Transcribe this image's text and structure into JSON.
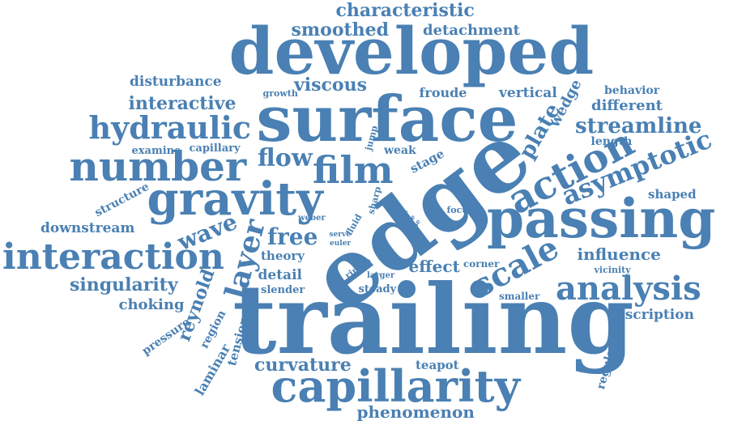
{
  "accent_color": "#4a80b3",
  "words": [
    {
      "text": "trailing",
      "weight": 1.0
    },
    {
      "text": "edge",
      "weight": 0.98
    },
    {
      "text": "surface",
      "weight": 0.8
    },
    {
      "text": "developed",
      "weight": 0.8
    },
    {
      "text": "passing",
      "weight": 0.6
    },
    {
      "text": "capillarity",
      "weight": 0.55
    },
    {
      "text": "gravity",
      "weight": 0.55
    },
    {
      "text": "number",
      "weight": 0.5
    },
    {
      "text": "interaction",
      "weight": 0.5
    },
    {
      "text": "action",
      "weight": 0.5
    },
    {
      "text": "analysis",
      "weight": 0.45
    },
    {
      "text": "film",
      "weight": 0.45
    },
    {
      "text": "hydraulic",
      "weight": 0.42
    },
    {
      "text": "layer",
      "weight": 0.4
    },
    {
      "text": "scale",
      "weight": 0.4
    },
    {
      "text": "asymptotic",
      "weight": 0.35
    },
    {
      "text": "flow",
      "weight": 0.35
    },
    {
      "text": "free",
      "weight": 0.32
    },
    {
      "text": "wave",
      "weight": 0.3
    },
    {
      "text": "streamline",
      "weight": 0.3
    },
    {
      "text": "plate",
      "weight": 0.3
    },
    {
      "text": "characteristic",
      "weight": 0.28
    },
    {
      "text": "smoothed",
      "weight": 0.28
    },
    {
      "text": "interactive",
      "weight": 0.28
    },
    {
      "text": "singularity",
      "weight": 0.28
    },
    {
      "text": "curvature",
      "weight": 0.28
    },
    {
      "text": "reynold",
      "weight": 0.28
    },
    {
      "text": "viscous",
      "weight": 0.26
    },
    {
      "text": "influence",
      "weight": 0.25
    },
    {
      "text": "different",
      "weight": 0.24
    },
    {
      "text": "wedge",
      "weight": 0.24
    },
    {
      "text": "detachment",
      "weight": 0.22
    },
    {
      "text": "disturbance",
      "weight": 0.22
    },
    {
      "text": "downstream",
      "weight": 0.22
    },
    {
      "text": "phenomenon",
      "weight": 0.22
    },
    {
      "text": "choking",
      "weight": 0.22
    },
    {
      "text": "description",
      "weight": 0.22
    },
    {
      "text": "effect",
      "weight": 0.22
    },
    {
      "text": "vertical",
      "weight": 0.2
    },
    {
      "text": "froude",
      "weight": 0.2
    },
    {
      "text": "detail",
      "weight": 0.2
    },
    {
      "text": "theory",
      "weight": 0.2
    },
    {
      "text": "laminar",
      "weight": 0.2
    },
    {
      "text": "tension",
      "weight": 0.2
    },
    {
      "text": "shaped",
      "weight": 0.18
    },
    {
      "text": "behavior",
      "weight": 0.18
    },
    {
      "text": "length",
      "weight": 0.18
    },
    {
      "text": "stage",
      "weight": 0.18
    },
    {
      "text": "structure",
      "weight": 0.18
    },
    {
      "text": "teapot",
      "weight": 0.18
    },
    {
      "text": "regularise",
      "weight": 0.17
    },
    {
      "text": "pressure",
      "weight": 0.17
    },
    {
      "text": "region",
      "weight": 0.17
    },
    {
      "text": "examine",
      "weight": 0.16
    },
    {
      "text": "capillary",
      "weight": 0.16
    },
    {
      "text": "weak",
      "weight": 0.16
    },
    {
      "text": "slender",
      "weight": 0.16
    },
    {
      "text": "steady",
      "weight": 0.16
    },
    {
      "text": "corner",
      "weight": 0.15
    },
    {
      "text": "smaller",
      "weight": 0.15
    },
    {
      "text": "vicinity",
      "weight": 0.14
    },
    {
      "text": "growth",
      "weight": 0.14
    },
    {
      "text": "jump",
      "weight": 0.13
    },
    {
      "text": "sharp",
      "weight": 0.13
    },
    {
      "text": "fluid",
      "weight": 0.13
    },
    {
      "text": "weber",
      "weight": 0.13
    },
    {
      "text": "ripple",
      "weight": 0.13
    },
    {
      "text": "larger",
      "weight": 0.12
    },
    {
      "text": "focus",
      "weight": 0.12
    },
    {
      "text": "serve",
      "weight": 0.11
    },
    {
      "text": "euler",
      "weight": 0.11
    },
    {
      "text": "flat",
      "weight": 0.1
    },
    {
      "text": "one",
      "weight": 0.1
    },
    {
      "text": "case",
      "weight": 0.1
    }
  ]
}
